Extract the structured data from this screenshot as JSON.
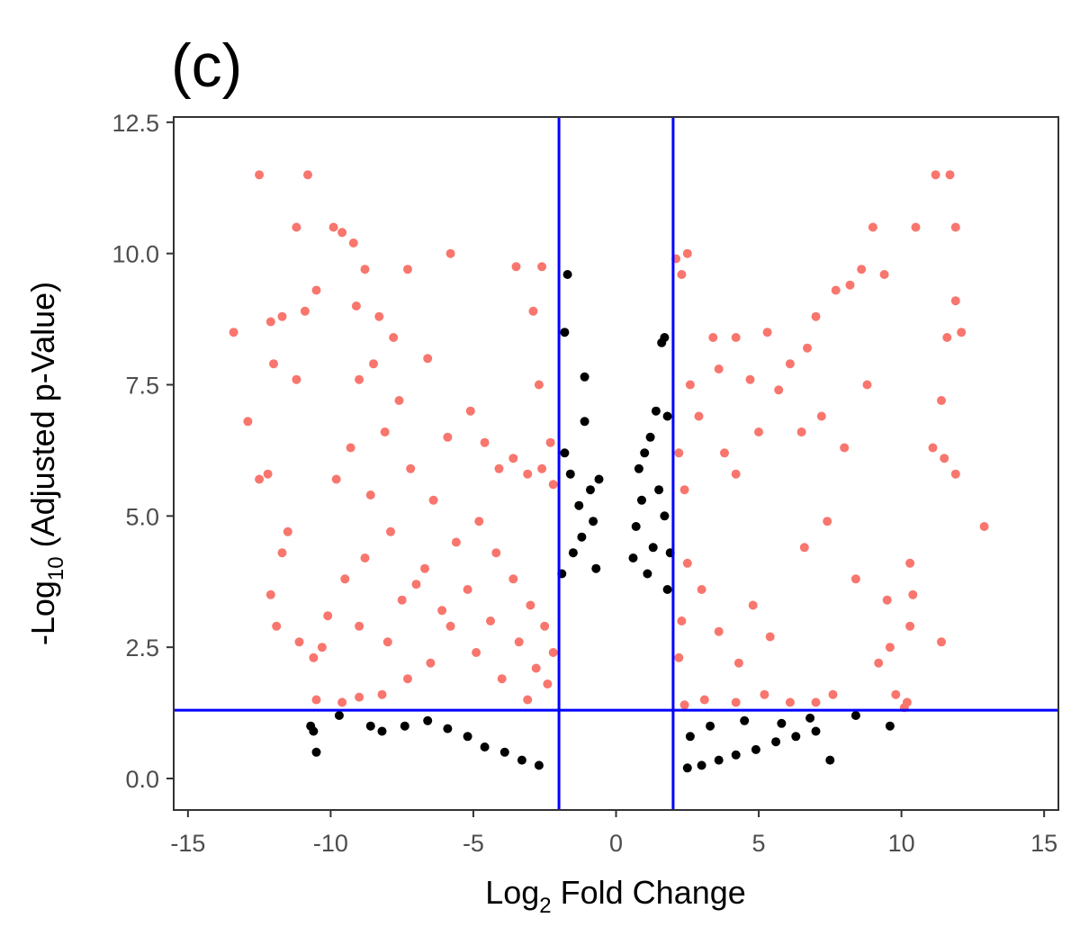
{
  "chart_data": {
    "type": "scatter",
    "panel_label": "(c)",
    "xlabel": {
      "main": "Log",
      "sub": "2",
      "rest": " Fold Change"
    },
    "ylabel": {
      "main": "-Log",
      "sub": "10",
      "rest": " (Adjusted p-Value)"
    },
    "xlim": [
      -15.5,
      15.5
    ],
    "ylim": [
      -0.6,
      12.6
    ],
    "x_ticks": [
      -15,
      -10,
      -5,
      0,
      5,
      10,
      15
    ],
    "x_tick_labels": [
      "-15",
      "-10",
      "-5",
      "0",
      "5",
      "10",
      "15"
    ],
    "y_ticks": [
      0,
      2.5,
      5,
      7.5,
      10,
      12.5
    ],
    "y_tick_labels": [
      "0.0",
      "2.5",
      "5.0",
      "7.5",
      "10.0",
      "12.5"
    ],
    "grid": false,
    "legend": "none",
    "thresholds": {
      "fold_change_lines": [
        -2,
        2
      ],
      "pvalue_line": 1.3
    },
    "colors": {
      "significant": "#f8766d",
      "not_significant": "#000000",
      "threshold": "#0000ff"
    },
    "series": [
      {
        "name": "",
        "color": "#f8766d",
        "points": [
          [
            -12.5,
            11.5
          ],
          [
            -10.8,
            11.5
          ],
          [
            -11.2,
            10.5
          ],
          [
            -9.9,
            10.5
          ],
          [
            -9.6,
            10.4
          ],
          [
            -9.2,
            10.2
          ],
          [
            -5.8,
            10.0
          ],
          [
            -3.5,
            9.75
          ],
          [
            -2.6,
            9.75
          ],
          [
            -2.9,
            8.9
          ],
          [
            -8.8,
            9.7
          ],
          [
            -10.5,
            9.3
          ],
          [
            -13.4,
            8.5
          ],
          [
            -12.1,
            8.7
          ],
          [
            -11.7,
            8.8
          ],
          [
            -10.9,
            8.9
          ],
          [
            -12.0,
            7.9
          ],
          [
            -11.2,
            7.6
          ],
          [
            -12.9,
            6.8
          ],
          [
            -12.5,
            5.7
          ],
          [
            -12.2,
            5.8
          ],
          [
            -11.5,
            4.7
          ],
          [
            -11.7,
            4.3
          ],
          [
            -12.1,
            3.5
          ],
          [
            -11.9,
            2.9
          ],
          [
            -11.1,
            2.6
          ],
          [
            -10.6,
            2.3
          ],
          [
            -10.3,
            2.5
          ],
          [
            -10.5,
            1.5
          ],
          [
            -9.6,
            1.45
          ],
          [
            -2.7,
            7.5
          ],
          [
            -7.3,
            9.7
          ],
          [
            -6.6,
            8.0
          ],
          [
            -5.9,
            6.5
          ],
          [
            -5.1,
            7.0
          ],
          [
            -4.6,
            6.4
          ],
          [
            -4.1,
            5.9
          ],
          [
            -3.6,
            6.1
          ],
          [
            -3.1,
            5.8
          ],
          [
            -2.6,
            5.9
          ],
          [
            -2.3,
            6.4
          ],
          [
            -2.2,
            5.6
          ],
          [
            2.1,
            9.9
          ],
          [
            2.5,
            10.0
          ],
          [
            2.3,
            9.6
          ],
          [
            3.4,
            8.4
          ],
          [
            4.2,
            8.4
          ],
          [
            5.3,
            8.5
          ],
          [
            4.7,
            7.6
          ],
          [
            3.6,
            7.8
          ],
          [
            2.6,
            7.5
          ],
          [
            2.9,
            6.9
          ],
          [
            3.8,
            6.2
          ],
          [
            4.2,
            5.8
          ],
          [
            5.0,
            6.6
          ],
          [
            2.2,
            6.2
          ],
          [
            2.4,
            5.5
          ],
          [
            9.0,
            10.5
          ],
          [
            10.5,
            10.5
          ],
          [
            11.2,
            11.5
          ],
          [
            11.7,
            11.5
          ],
          [
            11.9,
            10.5
          ],
          [
            11.9,
            9.1
          ],
          [
            12.1,
            8.5
          ],
          [
            11.6,
            8.4
          ],
          [
            11.4,
            7.2
          ],
          [
            11.1,
            6.3
          ],
          [
            11.5,
            6.1
          ],
          [
            11.9,
            5.8
          ],
          [
            12.9,
            4.8
          ],
          [
            11.4,
            2.6
          ],
          [
            10.2,
            1.45
          ],
          [
            10.1,
            1.35
          ],
          [
            10.3,
            4.1
          ],
          [
            10.4,
            3.5
          ],
          [
            10.3,
            2.9
          ],
          [
            9.6,
            2.5
          ],
          [
            9.2,
            2.2
          ],
          [
            8.6,
            9.7
          ],
          [
            9.4,
            9.6
          ],
          [
            8.2,
            9.4
          ],
          [
            7.7,
            9.3
          ],
          [
            6.7,
            8.2
          ],
          [
            6.1,
            7.9
          ],
          [
            5.7,
            7.4
          ],
          [
            7.0,
            8.8
          ],
          [
            6.5,
            6.6
          ],
          [
            7.2,
            6.9
          ],
          [
            8.0,
            6.3
          ],
          [
            8.8,
            7.5
          ],
          [
            7.4,
            4.9
          ],
          [
            6.6,
            4.4
          ],
          [
            8.4,
            3.8
          ],
          [
            9.5,
            3.4
          ],
          [
            9.8,
            1.6
          ],
          [
            7.0,
            1.45
          ],
          [
            7.6,
            1.6
          ],
          [
            6.1,
            1.45
          ],
          [
            5.2,
            1.6
          ],
          [
            4.2,
            1.45
          ],
          [
            3.1,
            1.5
          ],
          [
            2.4,
            1.4
          ],
          [
            2.2,
            2.3
          ],
          [
            2.3,
            3.0
          ],
          [
            2.5,
            4.1
          ],
          [
            3.0,
            3.6
          ],
          [
            3.6,
            2.8
          ],
          [
            4.3,
            2.2
          ],
          [
            4.8,
            3.3
          ],
          [
            5.4,
            2.7
          ],
          [
            -9.1,
            9.0
          ],
          [
            -8.3,
            8.8
          ],
          [
            -7.8,
            8.4
          ],
          [
            -8.5,
            7.9
          ],
          [
            -9.0,
            7.6
          ],
          [
            -7.6,
            7.2
          ],
          [
            -8.1,
            6.6
          ],
          [
            -9.3,
            6.3
          ],
          [
            -9.8,
            5.7
          ],
          [
            -8.6,
            5.4
          ],
          [
            -7.2,
            5.9
          ],
          [
            -6.4,
            5.3
          ],
          [
            -7.9,
            4.7
          ],
          [
            -8.8,
            4.2
          ],
          [
            -9.5,
            3.8
          ],
          [
            -10.1,
            3.1
          ],
          [
            -9.0,
            2.9
          ],
          [
            -7.5,
            3.4
          ],
          [
            -6.7,
            4.0
          ],
          [
            -5.6,
            4.5
          ],
          [
            -4.8,
            4.9
          ],
          [
            -4.2,
            4.3
          ],
          [
            -3.6,
            3.8
          ],
          [
            -3.0,
            3.3
          ],
          [
            -2.5,
            2.9
          ],
          [
            -2.2,
            2.4
          ],
          [
            -2.4,
            1.8
          ],
          [
            -3.1,
            1.5
          ],
          [
            -4.0,
            1.9
          ],
          [
            -4.9,
            2.4
          ],
          [
            -5.8,
            2.9
          ],
          [
            -6.5,
            2.2
          ],
          [
            -7.3,
            1.9
          ],
          [
            -8.2,
            1.6
          ],
          [
            -9.0,
            1.55
          ],
          [
            -8.0,
            2.6
          ],
          [
            -7.0,
            3.7
          ],
          [
            -6.1,
            3.2
          ],
          [
            -5.2,
            3.6
          ],
          [
            -4.4,
            3.0
          ],
          [
            -3.4,
            2.6
          ],
          [
            -2.8,
            2.1
          ]
        ]
      },
      {
        "name": "",
        "color": "#000000",
        "points": [
          [
            -1.7,
            9.6
          ],
          [
            -1.8,
            8.5
          ],
          [
            -1.1,
            7.65
          ],
          [
            -1.1,
            6.8
          ],
          [
            -0.9,
            5.5
          ],
          [
            -1.3,
            5.2
          ],
          [
            -1.8,
            6.2
          ],
          [
            -1.6,
            5.8
          ],
          [
            -0.6,
            5.7
          ],
          [
            -0.8,
            4.9
          ],
          [
            -1.2,
            4.6
          ],
          [
            -1.5,
            4.3
          ],
          [
            -0.7,
            4.0
          ],
          [
            -1.9,
            3.9
          ],
          [
            1.7,
            8.4
          ],
          [
            1.6,
            8.3
          ],
          [
            1.4,
            7.0
          ],
          [
            1.8,
            6.9
          ],
          [
            1.2,
            6.5
          ],
          [
            1.0,
            6.2
          ],
          [
            0.8,
            5.9
          ],
          [
            1.5,
            5.5
          ],
          [
            0.9,
            5.3
          ],
          [
            1.7,
            5.0
          ],
          [
            0.7,
            4.8
          ],
          [
            1.3,
            4.4
          ],
          [
            0.6,
            4.2
          ],
          [
            1.9,
            4.3
          ],
          [
            1.1,
            3.9
          ],
          [
            1.8,
            3.6
          ],
          [
            -10.7,
            1.0
          ],
          [
            -10.6,
            0.9
          ],
          [
            -10.5,
            0.5
          ],
          [
            -9.7,
            1.2
          ],
          [
            -8.6,
            1.0
          ],
          [
            -8.2,
            0.9
          ],
          [
            -7.4,
            1.0
          ],
          [
            -6.6,
            1.1
          ],
          [
            -5.9,
            0.95
          ],
          [
            -5.2,
            0.8
          ],
          [
            -4.6,
            0.6
          ],
          [
            -3.9,
            0.5
          ],
          [
            -3.3,
            0.35
          ],
          [
            -2.7,
            0.25
          ],
          [
            7.5,
            0.35
          ],
          [
            8.4,
            1.2
          ],
          [
            9.6,
            1.0
          ],
          [
            7.0,
            0.9
          ],
          [
            6.3,
            0.8
          ],
          [
            5.6,
            0.7
          ],
          [
            4.9,
            0.55
          ],
          [
            4.2,
            0.45
          ],
          [
            3.6,
            0.35
          ],
          [
            3.0,
            0.25
          ],
          [
            2.5,
            0.2
          ],
          [
            5.8,
            1.05
          ],
          [
            6.8,
            1.15
          ],
          [
            4.5,
            1.1
          ],
          [
            3.3,
            1.0
          ],
          [
            2.6,
            0.8
          ]
        ]
      }
    ]
  }
}
